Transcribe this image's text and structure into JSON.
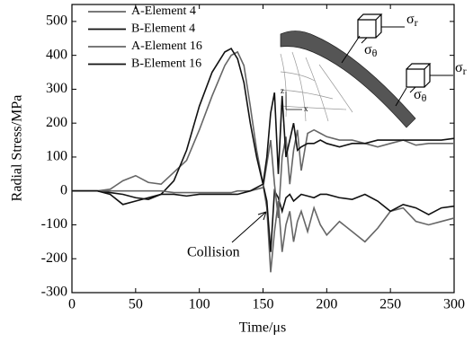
{
  "chart_data": {
    "type": "line",
    "x_label": "Time/μs",
    "y_label": "Radial Stress/MPa",
    "x": [
      0,
      10,
      20,
      30,
      40,
      50,
      60,
      70,
      80,
      90,
      100,
      110,
      120,
      125,
      130,
      135,
      140,
      145,
      150,
      153,
      156,
      159,
      162,
      165,
      168,
      171,
      174,
      177,
      180,
      185,
      190,
      195,
      200,
      210,
      220,
      230,
      240,
      250,
      260,
      270,
      280,
      290,
      300
    ],
    "series": [
      {
        "name": "A-Element 4",
        "color": "#666666",
        "values": [
          0,
          0,
          0,
          5,
          30,
          45,
          25,
          20,
          55,
          90,
          180,
          280,
          370,
          400,
          410,
          370,
          250,
          120,
          20,
          -50,
          -240,
          -120,
          -30,
          -180,
          -100,
          -60,
          -150,
          -90,
          -60,
          -120,
          -50,
          -100,
          -130,
          -90,
          -120,
          -150,
          -110,
          -60,
          -50,
          -90,
          -100,
          -90,
          -80
        ]
      },
      {
        "name": "B-Element 4",
        "color": "#111111",
        "values": [
          0,
          0,
          0,
          -5,
          -10,
          -20,
          -25,
          -10,
          30,
          120,
          250,
          350,
          410,
          420,
          390,
          320,
          200,
          100,
          20,
          -30,
          -180,
          0,
          -20,
          -60,
          -20,
          -10,
          -30,
          -20,
          -10,
          -15,
          -20,
          -10,
          -10,
          -20,
          -25,
          -10,
          -30,
          -60,
          -40,
          -50,
          -70,
          -50,
          -45
        ]
      },
      {
        "name": "A-Element 16",
        "color": "#666666",
        "values": [
          0,
          0,
          0,
          0,
          0,
          0,
          0,
          0,
          -5,
          -5,
          -5,
          -5,
          -5,
          -5,
          0,
          0,
          0,
          5,
          10,
          80,
          150,
          20,
          -80,
          100,
          160,
          20,
          120,
          180,
          60,
          170,
          180,
          170,
          160,
          150,
          150,
          140,
          130,
          140,
          150,
          135,
          140,
          140,
          140
        ]
      },
      {
        "name": "B-Element 16",
        "color": "#111111",
        "values": [
          0,
          0,
          0,
          -10,
          -40,
          -30,
          -20,
          -10,
          -10,
          -15,
          -10,
          -10,
          -10,
          -10,
          -10,
          -5,
          0,
          10,
          20,
          100,
          230,
          290,
          50,
          280,
          100,
          150,
          200,
          120,
          130,
          140,
          140,
          150,
          140,
          130,
          140,
          140,
          150,
          150,
          150,
          150,
          150,
          150,
          155
        ]
      }
    ],
    "xlim": [
      0,
      300
    ],
    "xticks": [
      0,
      50,
      100,
      150,
      200,
      250,
      300
    ],
    "ylim": [
      -300,
      550
    ],
    "yticks": [
      -300,
      -200,
      -100,
      0,
      100,
      200,
      300,
      400,
      500
    ],
    "legend": "upper-left",
    "annotation": "Collision",
    "inset_labels": [
      {
        "symbol": "σ",
        "subscript": "r"
      },
      {
        "symbol": "σ",
        "subscript": "θ"
      },
      {
        "symbol": "σ",
        "subscript": "r"
      },
      {
        "symbol": "σ",
        "subscript": "θ"
      },
      {
        "symbol": "z"
      },
      {
        "symbol": "x"
      }
    ]
  }
}
